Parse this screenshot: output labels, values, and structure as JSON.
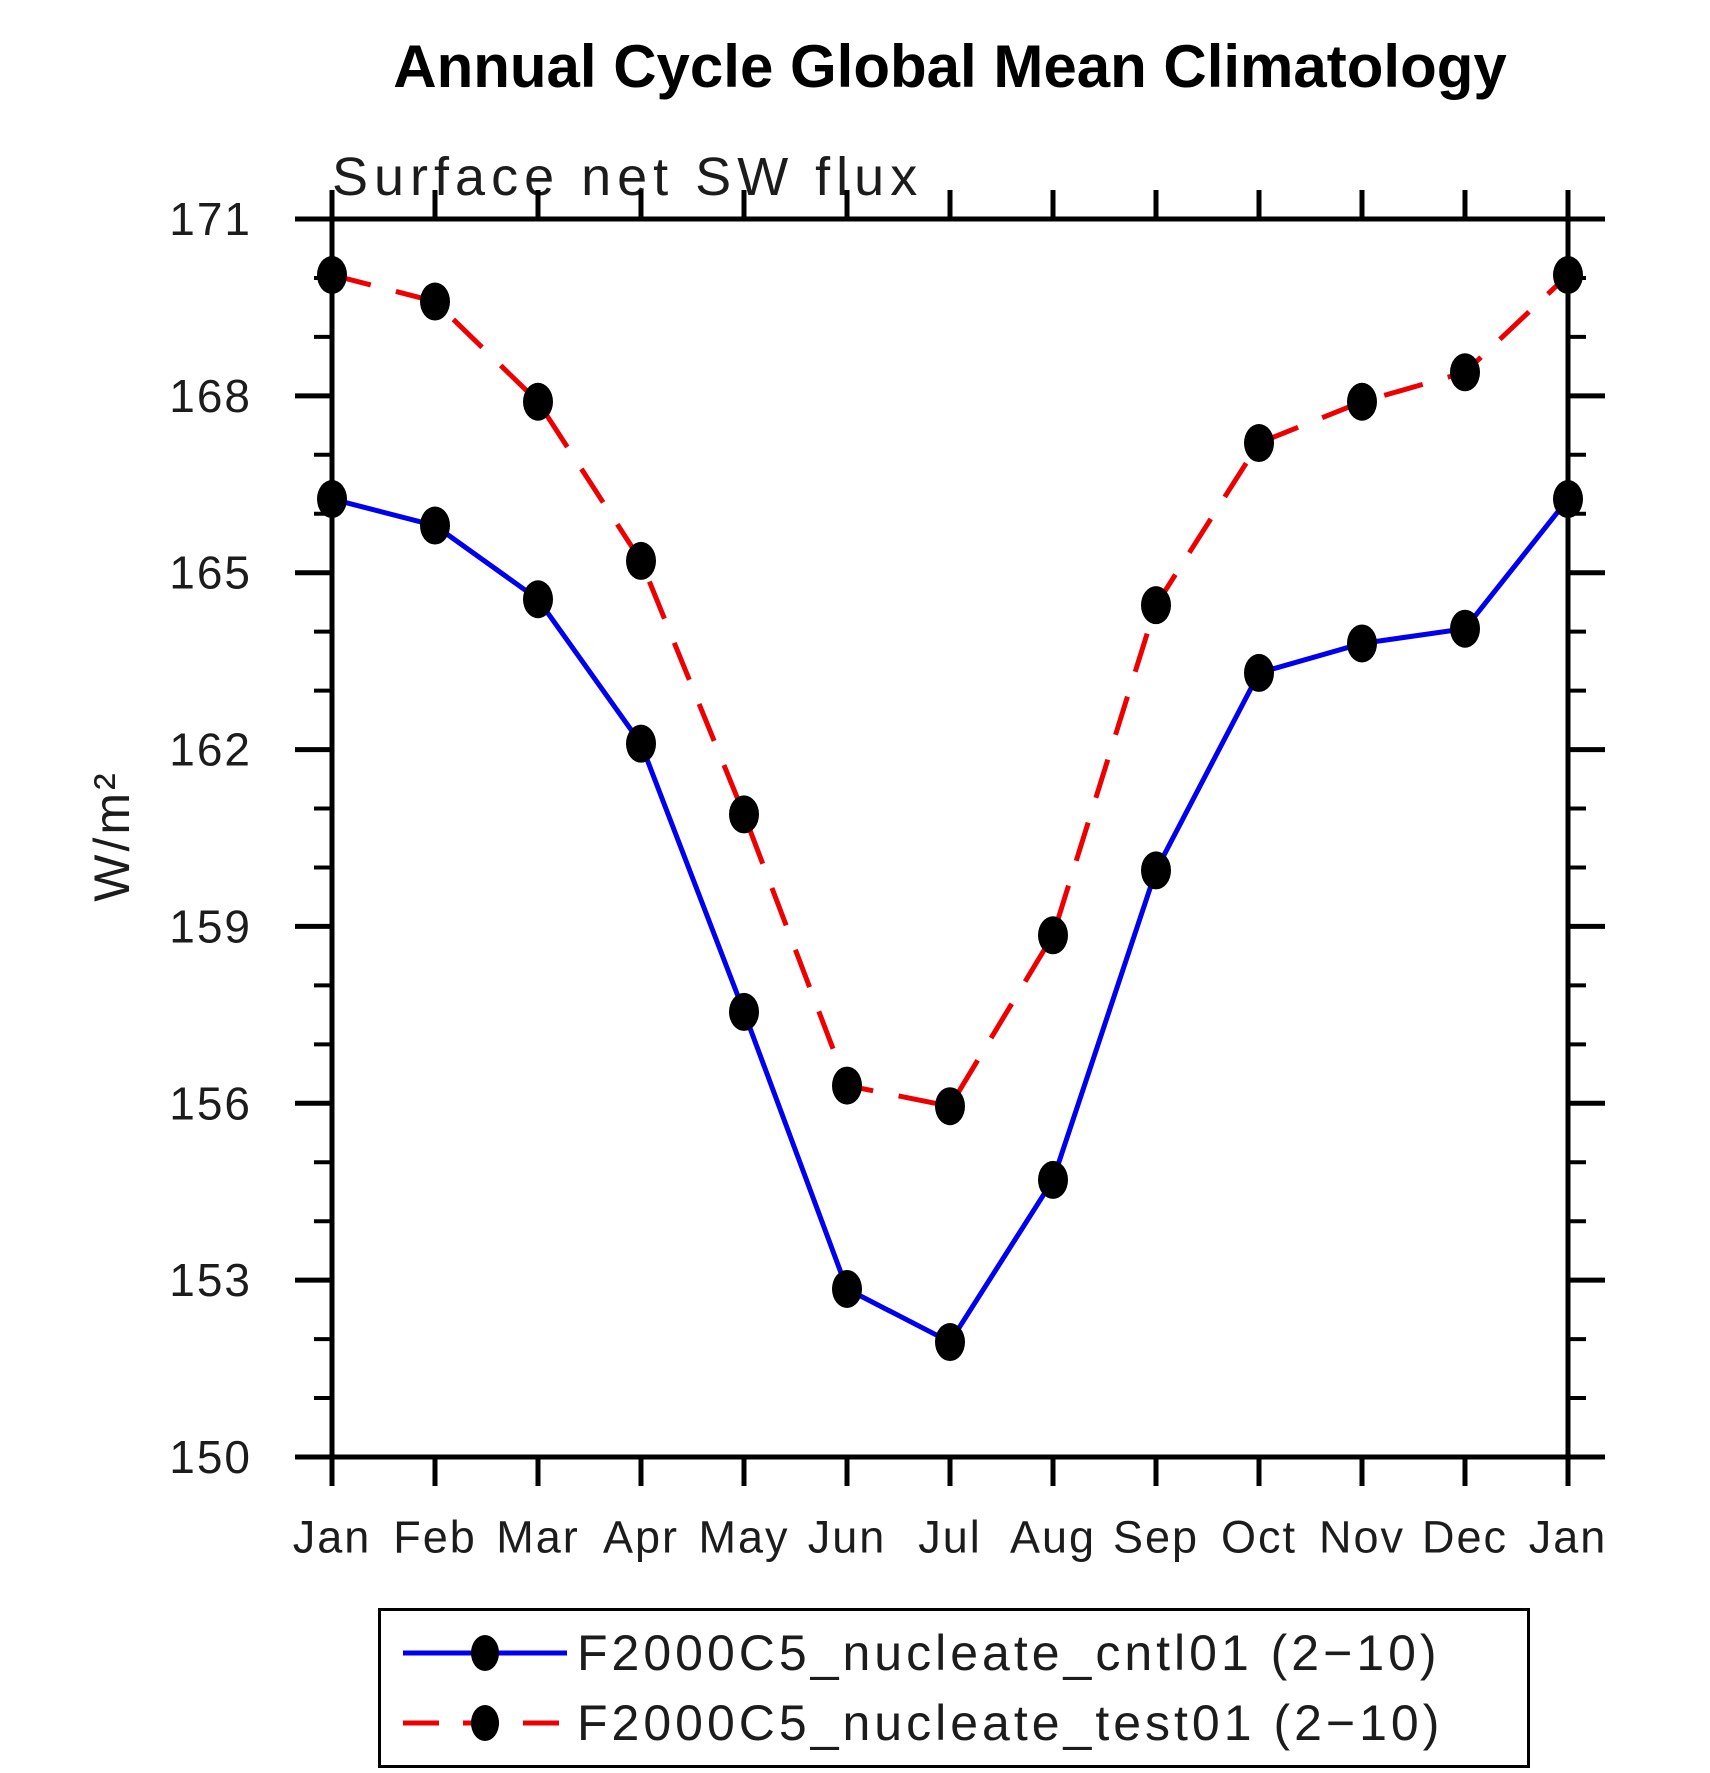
{
  "header": {
    "title": "Annual Cycle Global Mean Climatology",
    "subtitle": "Surface net SW flux"
  },
  "chart_data": {
    "type": "line",
    "title": "Annual Cycle Global Mean Climatology",
    "subtitle": "Surface net SW flux",
    "xlabel": "",
    "ylabel": "W/m²",
    "categories": [
      "Jan",
      "Feb",
      "Mar",
      "Apr",
      "May",
      "Jun",
      "Jul",
      "Aug",
      "Sep",
      "Oct",
      "Nov",
      "Dec",
      "Jan"
    ],
    "series": [
      {
        "name": "F2000C5_nucleate_cntl01 (2−10)",
        "style": "solid",
        "color": "#0000ee",
        "values": [
          166.25,
          165.8,
          164.55,
          162.1,
          157.55,
          152.85,
          151.95,
          154.7,
          159.95,
          163.3,
          163.8,
          164.05,
          166.25
        ]
      },
      {
        "name": "F2000C5_nucleate_test01 (2−10)",
        "style": "dashed",
        "color": "#ee0000",
        "values": [
          170.05,
          169.6,
          167.9,
          165.2,
          160.9,
          156.3,
          155.95,
          158.85,
          164.45,
          167.2,
          167.9,
          168.4,
          170.05
        ]
      }
    ],
    "marker": {
      "shape": "filled-circle",
      "color": "#000000"
    },
    "ylim": [
      150,
      171
    ],
    "yticks_major": [
      150,
      153,
      156,
      159,
      162,
      165,
      168,
      171
    ],
    "ytick_minor_step": 1,
    "grid": false,
    "legend_position": "bottom",
    "axis_color": "#000000"
  }
}
